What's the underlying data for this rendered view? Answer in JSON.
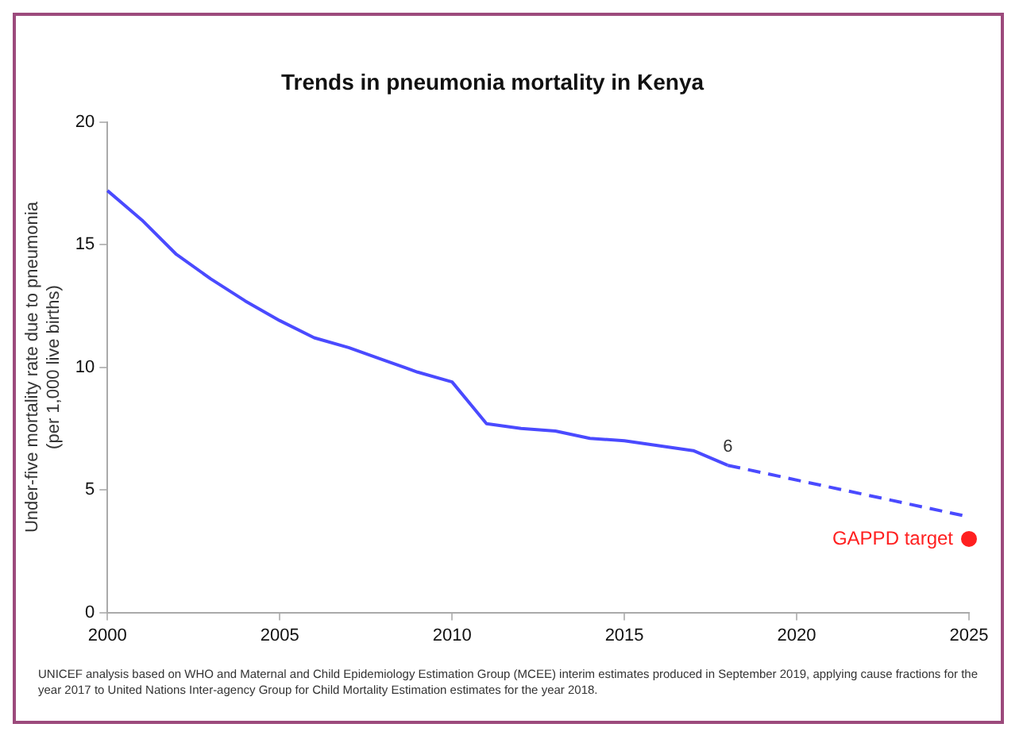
{
  "chart_data": {
    "type": "line",
    "title": "Trends in pneumonia mortality in Kenya",
    "ylabel": "Under-five mortality rate due to pneumonia\n(per 1,000 live births)",
    "xlim": [
      2000,
      2025
    ],
    "xticks": [
      2000,
      2005,
      2010,
      2015,
      2020,
      2025
    ],
    "ylim": [
      0,
      20
    ],
    "yticks": [
      0,
      5,
      10,
      15,
      20
    ],
    "grid": false,
    "legend": false,
    "marker": "none",
    "series": [
      {
        "color": "#4a4aff",
        "line_style": "solid",
        "x": [
          2000,
          2001,
          2002,
          2003,
          2004,
          2005,
          2006,
          2007,
          2008,
          2009,
          2010,
          2011,
          2012,
          2013,
          2014,
          2015,
          2016,
          2017,
          2018
        ],
        "values": [
          17.2,
          16.0,
          14.6,
          13.6,
          12.7,
          11.9,
          11.2,
          10.8,
          10.3,
          9.8,
          9.4,
          7.7,
          7.5,
          7.4,
          7.1,
          7.0,
          6.8,
          6.6,
          6.0
        ],
        "value_labels": [
          null,
          null,
          null,
          null,
          null,
          null,
          null,
          null,
          null,
          null,
          null,
          null,
          null,
          null,
          null,
          null,
          null,
          null,
          "6"
        ]
      },
      {
        "color": "#4a4aff",
        "line_style": "dashed",
        "x": [
          2018,
          2025
        ],
        "values": [
          6.0,
          3.9
        ]
      },
      {
        "type": "scatter",
        "name": "GAPPD target",
        "color": "#ff2020",
        "marker": "circle",
        "x": [
          2025
        ],
        "values": [
          3
        ]
      }
    ],
    "annotations": [
      "UNICEF analysis based on WHO and Maternal and Child Epidemiology Estimation Group (MCEE) interim estimates produced in September 2019, applying cause fractions for the year 2017 to United Nations Inter-agency Group for Child Mortality Estimation estimates for the year 2018."
    ]
  }
}
